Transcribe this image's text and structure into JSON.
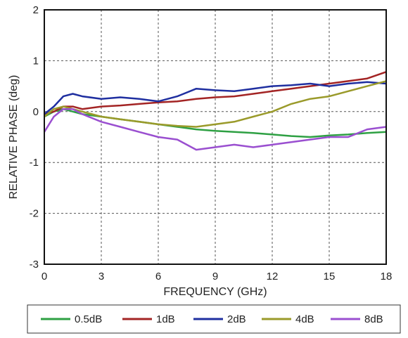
{
  "chart_data": {
    "type": "line",
    "xlabel": "FREQUENCY (GHz)",
    "ylabel": "RELATIVE PHASE (deg)",
    "xlim": [
      0,
      18
    ],
    "ylim": [
      -3,
      2
    ],
    "xticks": [
      0,
      3,
      6,
      9,
      12,
      15,
      18
    ],
    "yticks": [
      2,
      1,
      0,
      -1,
      -2,
      -3
    ],
    "xtick_labels": [
      "0",
      "3",
      "6",
      "9",
      "12",
      "15",
      "18"
    ],
    "ytick_labels": [
      "2",
      "1",
      "0",
      "-1",
      "-2",
      "-3"
    ],
    "grid": true,
    "legend_position": "bottom",
    "series": [
      {
        "name": "0.5dB",
        "color": "#2ea043",
        "x": [
          0,
          0.5,
          1,
          1.5,
          2,
          3,
          4,
          5,
          6,
          7,
          8,
          9,
          10,
          11,
          12,
          13,
          14,
          15,
          16,
          17,
          18
        ],
        "y": [
          -0.1,
          0.0,
          0.05,
          0.0,
          -0.05,
          -0.1,
          -0.15,
          -0.2,
          -0.25,
          -0.3,
          -0.35,
          -0.38,
          -0.4,
          -0.42,
          -0.45,
          -0.48,
          -0.5,
          -0.47,
          -0.45,
          -0.42,
          -0.4
        ]
      },
      {
        "name": "1dB",
        "color": "#a32424",
        "x": [
          0,
          0.5,
          1,
          1.5,
          2,
          3,
          4,
          5,
          6,
          7,
          8,
          9,
          10,
          11,
          12,
          13,
          14,
          15,
          16,
          17,
          18
        ],
        "y": [
          -0.05,
          0.0,
          0.1,
          0.1,
          0.05,
          0.1,
          0.12,
          0.15,
          0.18,
          0.2,
          0.25,
          0.28,
          0.3,
          0.35,
          0.4,
          0.45,
          0.5,
          0.55,
          0.6,
          0.65,
          0.78
        ]
      },
      {
        "name": "2dB",
        "color": "#1f2fa0",
        "x": [
          0,
          0.5,
          1,
          1.5,
          2,
          3,
          4,
          5,
          6,
          7,
          8,
          9,
          10,
          11,
          12,
          13,
          14,
          15,
          16,
          17,
          18
        ],
        "y": [
          -0.05,
          0.1,
          0.3,
          0.35,
          0.3,
          0.25,
          0.28,
          0.25,
          0.2,
          0.3,
          0.45,
          0.42,
          0.4,
          0.45,
          0.5,
          0.52,
          0.55,
          0.5,
          0.55,
          0.58,
          0.55
        ]
      },
      {
        "name": "4dB",
        "color": "#9a9a2a",
        "x": [
          0,
          0.5,
          1,
          1.5,
          2,
          3,
          4,
          5,
          6,
          7,
          8,
          9,
          10,
          11,
          12,
          13,
          14,
          15,
          16,
          17,
          18
        ],
        "y": [
          -0.1,
          0.05,
          0.1,
          0.05,
          0.0,
          -0.1,
          -0.15,
          -0.2,
          -0.25,
          -0.28,
          -0.3,
          -0.25,
          -0.2,
          -0.1,
          0.0,
          0.15,
          0.25,
          0.3,
          0.4,
          0.5,
          0.6
        ]
      },
      {
        "name": "8dB",
        "color": "#9a4fd0",
        "x": [
          0,
          0.5,
          1,
          1.5,
          2,
          3,
          4,
          5,
          6,
          7,
          8,
          9,
          10,
          11,
          12,
          13,
          14,
          15,
          16,
          17,
          18
        ],
        "y": [
          -0.4,
          -0.1,
          0.05,
          0.05,
          -0.05,
          -0.2,
          -0.3,
          -0.4,
          -0.5,
          -0.55,
          -0.75,
          -0.7,
          -0.65,
          -0.7,
          -0.65,
          -0.6,
          -0.55,
          -0.5,
          -0.5,
          -0.35,
          -0.3
        ]
      }
    ]
  }
}
